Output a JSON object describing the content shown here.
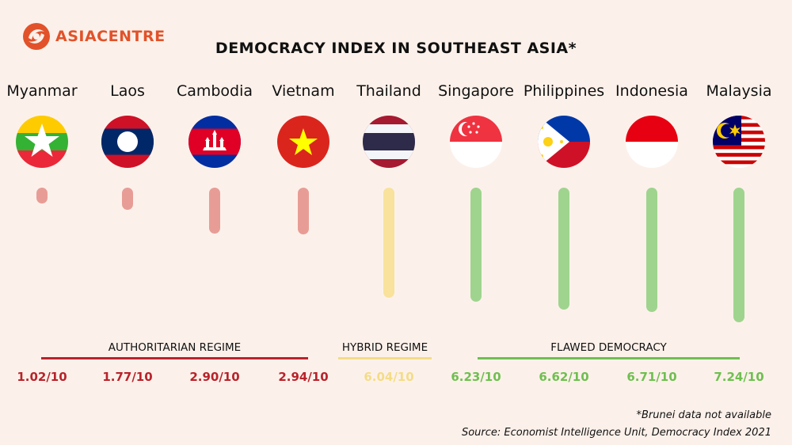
{
  "logo": {
    "part1": "ASIA",
    "part2": "CENTRE",
    "icon": "asia-centre-logo-icon"
  },
  "title": "DEMOCRACY INDEX IN SOUTHEAST ASIA*",
  "colors": {
    "authoritarian": "#b8232b",
    "hybrid": "#f4dc86",
    "flawed": "#6fbf50",
    "authoritarian_bar": "#e79d96",
    "hybrid_bar": "#f8e29c",
    "flawed_bar": "#9fd48f",
    "brand": "#e2522a"
  },
  "categories": {
    "authoritarian": "AUTHORITARIAN REGIME",
    "hybrid": "HYBRID REGIME",
    "flawed": "FLAWED DEMOCRACY"
  },
  "chart_data": {
    "type": "bar",
    "title": "DEMOCRACY INDEX IN SOUTHEAST ASIA*",
    "categories": [
      "Myanmar",
      "Laos",
      "Cambodia",
      "Vietnam",
      "Thailand",
      "Singapore",
      "Philippines",
      "Indonesia",
      "Malaysia"
    ],
    "values": [
      1.02,
      1.77,
      2.9,
      2.94,
      6.04,
      6.23,
      6.62,
      6.71,
      7.24
    ],
    "value_labels": [
      "1.02/10",
      "1.77/10",
      "2.90/10",
      "2.94/10",
      "6.04/10",
      "6.23/10",
      "6.62/10",
      "6.71/10",
      "7.24/10"
    ],
    "regime": [
      "authoritarian",
      "authoritarian",
      "authoritarian",
      "authoritarian",
      "hybrid",
      "flawed",
      "flawed",
      "flawed",
      "flawed"
    ],
    "flags": [
      "myanmar-flag-icon",
      "laos-flag-icon",
      "cambodia-flag-icon",
      "vietnam-flag-icon",
      "thailand-flag-icon",
      "singapore-flag-icon",
      "philippines-flag-icon",
      "indonesia-flag-icon",
      "malaysia-flag-icon"
    ],
    "ylim": [
      0,
      10
    ],
    "grid": false
  },
  "footnote": "*Brunei data not available",
  "source": "Source: Economist Intelligence Unit, Democracy Index 2021"
}
